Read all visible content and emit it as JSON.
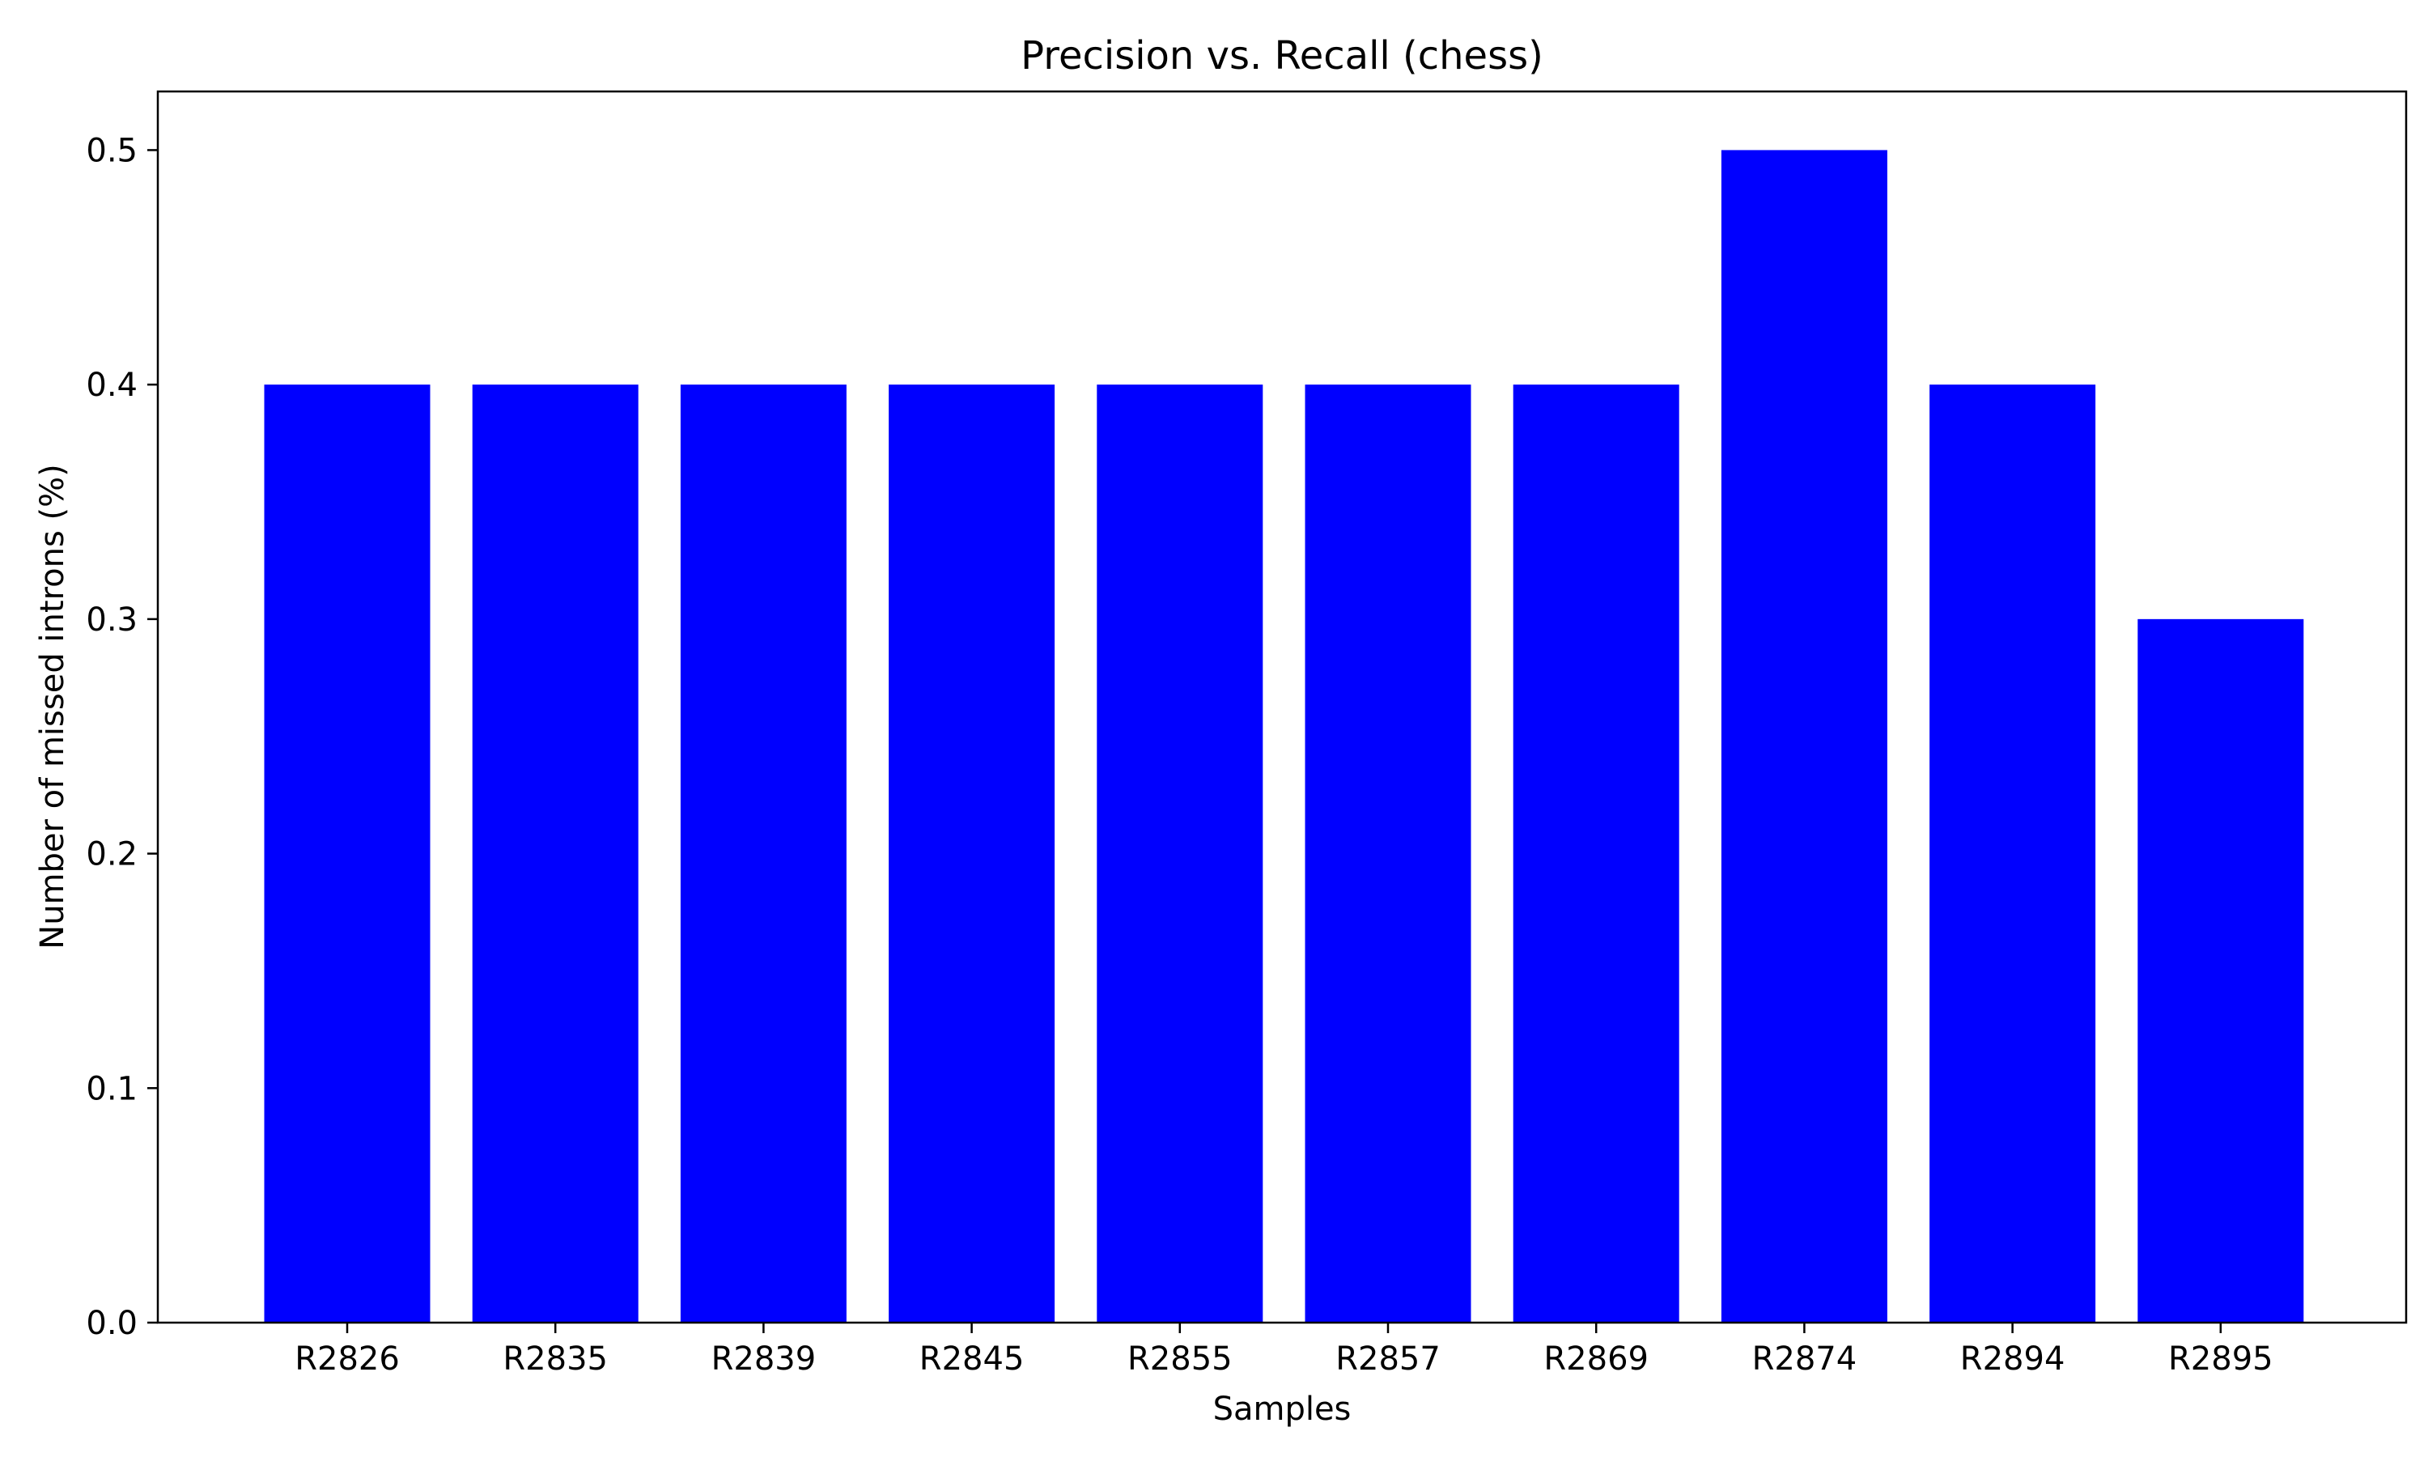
{
  "chart_data": {
    "type": "bar",
    "title": "Precision vs. Recall (chess)",
    "xlabel": "Samples",
    "ylabel": "Number of missed introns (%)",
    "categories": [
      "R2826",
      "R2835",
      "R2839",
      "R2845",
      "R2855",
      "R2857",
      "R2869",
      "R2874",
      "R2894",
      "R2895"
    ],
    "values": [
      0.4,
      0.4,
      0.4,
      0.4,
      0.4,
      0.4,
      0.4,
      0.5,
      0.4,
      0.3
    ],
    "ylim": [
      0,
      0.525
    ],
    "yticks": [
      "0.0",
      "0.1",
      "0.2",
      "0.3",
      "0.4",
      "0.5"
    ],
    "bar_color": "#0000ff",
    "grid": false,
    "legend": "none"
  }
}
